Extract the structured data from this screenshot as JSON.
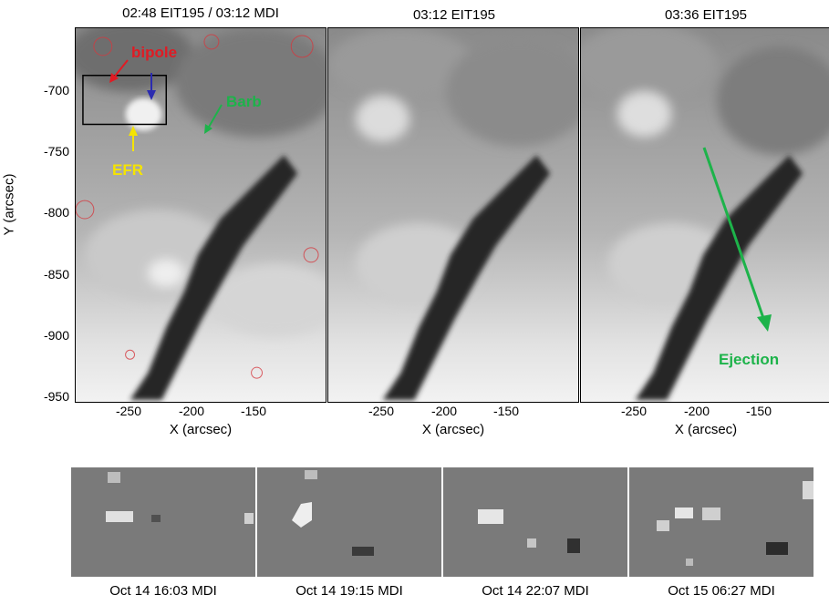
{
  "panels": [
    {
      "title": "02:48 EIT195 / 03:12 MDI"
    },
    {
      "title": "03:12 EIT195"
    },
    {
      "title": "03:36 EIT195"
    }
  ],
  "axes": {
    "ylabel": "Y (arcsec)",
    "xlabel": "X (arcsec)",
    "yticks": [
      "-700",
      "-750",
      "-800",
      "-850",
      "-900",
      "-950"
    ],
    "xticks": [
      "-250",
      "-200",
      "-150"
    ]
  },
  "annotations": {
    "bipole": {
      "text": "bipole",
      "color": "#e01b24"
    },
    "efr": {
      "text": "EFR",
      "color": "#f5e400"
    },
    "barb": {
      "text": "Barb",
      "color": "#1db34a"
    },
    "ejection": {
      "text": "Ejection",
      "color": "#1db34a"
    },
    "blue_arrow_color": "#2b2bb0"
  },
  "magnetograms": [
    {
      "caption": "Oct 14 16:03 MDI"
    },
    {
      "caption": "Oct 14 19:15 MDI"
    },
    {
      "caption": "Oct 14 22:07 MDI"
    },
    {
      "caption": "Oct 15 06:27 MDI"
    }
  ]
}
